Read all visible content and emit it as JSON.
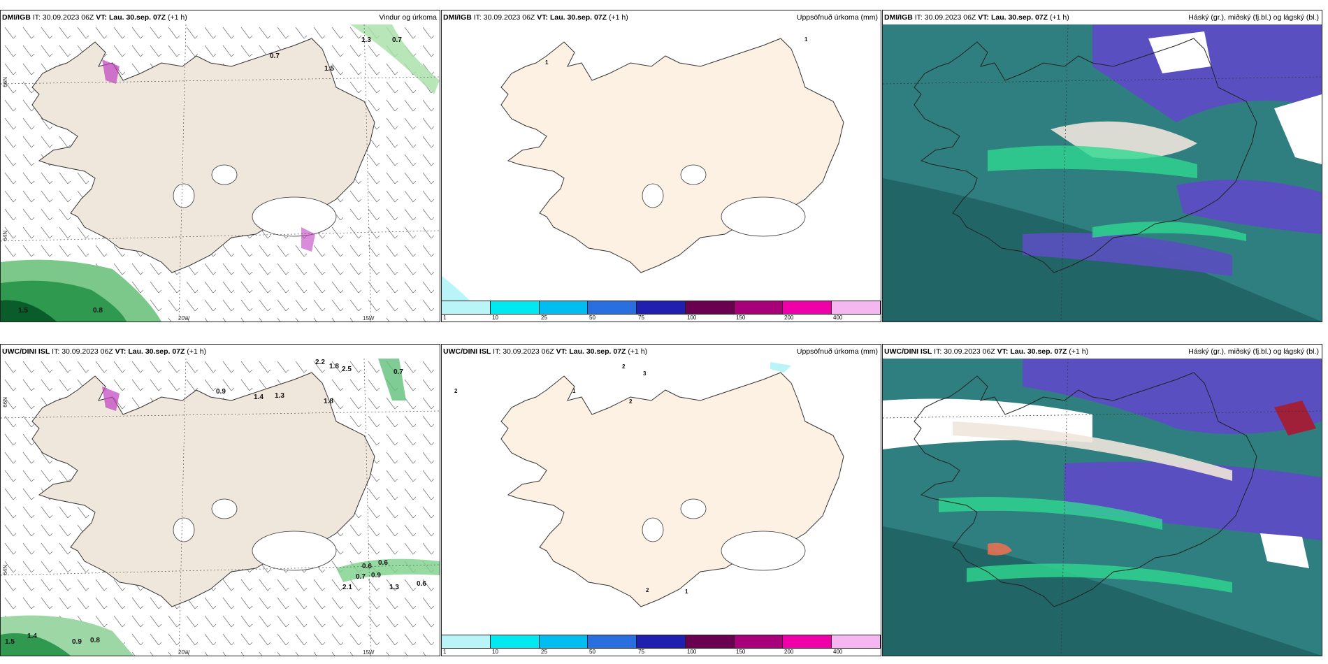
{
  "panels": [
    {
      "model": "DMI/IGB",
      "it_label": "IT:",
      "it": "30.09.2023 06Z",
      "vt_label": "VT:",
      "vt": "Lau. 30.sep. 07Z",
      "lead": "(+1 h)",
      "title": "Vindur og úrkoma"
    },
    {
      "model": "DMI/IGB",
      "it_label": "IT:",
      "it": "30.09.2023 06Z",
      "vt_label": "VT:",
      "vt": "Lau. 30.sep. 07Z",
      "lead": "(+1 h)",
      "title": "Uppsöfnuð úrkoma (mm)"
    },
    {
      "model": "DMI/IGB",
      "it_label": "IT:",
      "it": "30.09.2023 06Z",
      "vt_label": "VT:",
      "vt": "Lau. 30.sep. 07Z",
      "lead": "(+1 h)",
      "title": "Háský (gr.), miðský (fj.bl.) og lágský (bl.)"
    },
    {
      "model": "UWC/DINI ISL",
      "it_label": "IT:",
      "it": "30.09.2023 06Z",
      "vt_label": "VT:",
      "vt": "Lau. 30.sep. 07Z",
      "lead": "(+1 h)",
      "title": ""
    },
    {
      "model": "UWC/DINI ISL",
      "it_label": "IT:",
      "it": "30.09.2023 06Z",
      "vt_label": "VT:",
      "vt": "Lau. 30.sep. 07Z",
      "lead": "(+1 h)",
      "title": "Uppsöfnuð úrkoma (mm)"
    },
    {
      "model": "UWC/DINI ISL",
      "it_label": "IT:",
      "it": "30.09.2023 06Z",
      "vt_label": "VT:",
      "vt": "Lau. 30.sep. 07Z",
      "lead": "(+1 h)",
      "title": "Háský (gr.), miðský (fj.bl.) og lágský (bl.)"
    }
  ],
  "axes": {
    "lat_top": "66N",
    "lat_bottom": "64N",
    "lon_left": "20W",
    "lon_right": "15W"
  },
  "precip_labels_top": [
    "0.7",
    "1.3",
    "0.7",
    "1.5",
    "1.5",
    "0.8"
  ],
  "precip_labels_bottom": [
    "0.9",
    "1.4",
    "1.3",
    "2.2",
    "1.8",
    "2.5",
    "0.7",
    "1.8",
    "0.6",
    "0.6",
    "0.7",
    "0.9",
    "2.1",
    "1.3",
    "0.6",
    "1.5",
    "1.4",
    "0.9",
    "0.8"
  ],
  "accum_labels_top": [
    "1",
    "1"
  ],
  "accum_labels_bottom": [
    "2",
    "3",
    "1",
    "2",
    "2",
    "1",
    "2"
  ],
  "colorbar": {
    "ticks": [
      "1",
      "10",
      "25",
      "50",
      "75",
      "100",
      "150",
      "200",
      "400"
    ],
    "colors": [
      "#b8f4f8",
      "#00e8f0",
      "#00bff0",
      "#2a6fe0",
      "#2020b0",
      "#6a0050",
      "#a8007a",
      "#f000a8",
      "#f5b6f2"
    ]
  },
  "colors": {
    "land": "#efe6dc",
    "land_accum": "#fdf1e3",
    "precip_green": "#4cc06a",
    "dark_green": "#0a5c2a",
    "cloud_teal": "#2f7f80",
    "cloud_purple": "#5a4fc0",
    "cloud_green": "#30d890"
  }
}
